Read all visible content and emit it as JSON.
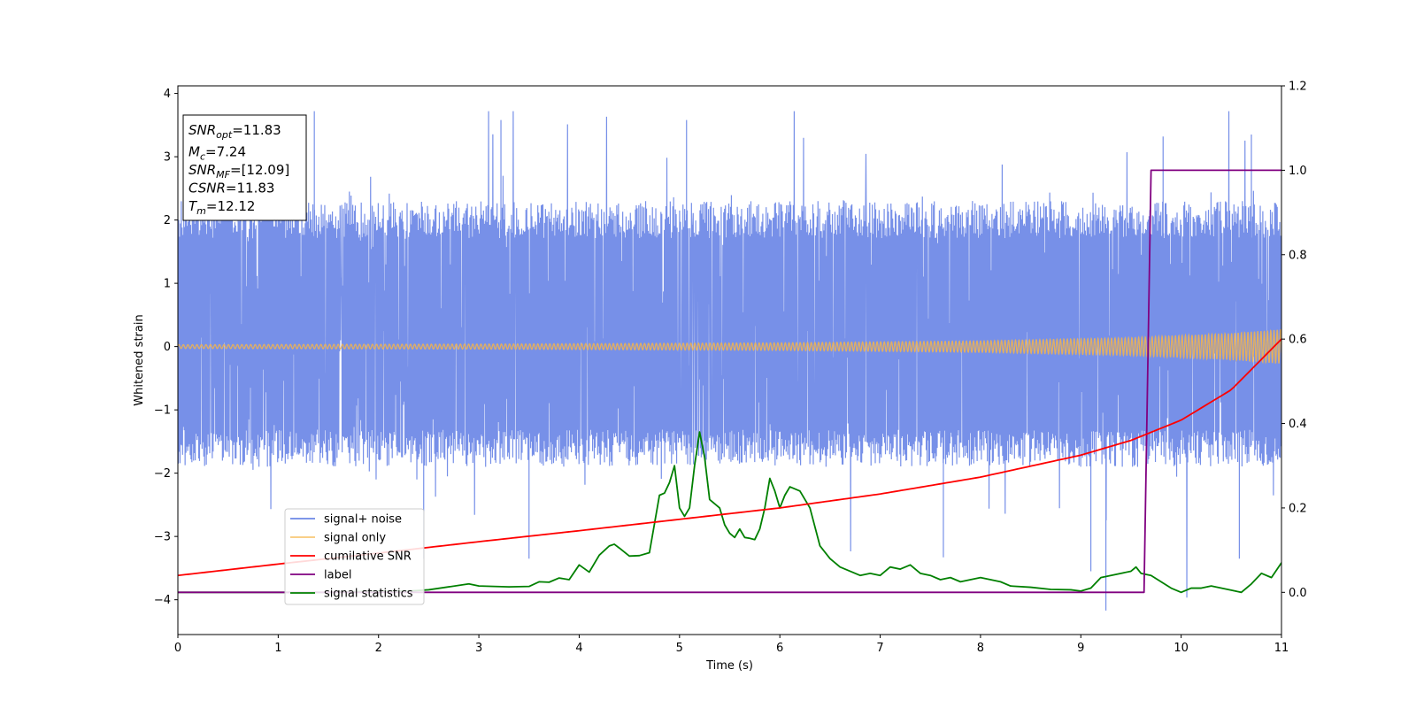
{
  "chart_data": {
    "type": "line",
    "xlabel": "Time (s)",
    "ylabel": "Whitened strain",
    "xlim": [
      0,
      11
    ],
    "ylim": [
      -4.55,
      4.12
    ],
    "y2lim": [
      -0.1,
      1.2
    ],
    "x_ticks": [
      0,
      1,
      2,
      3,
      4,
      5,
      6,
      7,
      8,
      9,
      10,
      11
    ],
    "y_ticks": [
      -4,
      -3,
      -2,
      -1,
      0,
      1,
      2,
      3,
      4
    ],
    "y2_ticks": [
      0.0,
      0.2,
      0.4,
      0.6,
      0.8,
      1.0,
      1.2
    ],
    "y_tick_labels": [
      "−4",
      "−3",
      "−2",
      "−1",
      "0",
      "1",
      "2",
      "3",
      "4"
    ],
    "y2_tick_labels": [
      "0.0",
      "0.2",
      "0.4",
      "0.6",
      "0.8",
      "1.0",
      "1.2"
    ],
    "grid": false,
    "legend_position": "lower-left",
    "series": [
      {
        "name": "signal+ noise",
        "color": "#6b87e6",
        "axis": "left",
        "kind": "noise band",
        "typical_range": [
          -1.9,
          2.3
        ],
        "extreme_range": [
          -4.17,
          3.72
        ],
        "peaks": [
          [
            1.36,
            3.72
          ],
          [
            3.22,
            3.58
          ],
          [
            5.07,
            3.58
          ],
          [
            9.82,
            3.32
          ],
          [
            10.7,
            3.35
          ],
          [
            9.25,
            -4.17
          ],
          [
            3.5,
            -3.35
          ],
          [
            10.58,
            -3.35
          ],
          [
            2.45,
            -3.35
          ],
          [
            7.63,
            -3.33
          ],
          [
            9.1,
            -3.55
          ]
        ]
      },
      {
        "name": "signal only",
        "color": "#f5b54a",
        "axis": "left",
        "kind": "chirp",
        "amplitude": [
          [
            0,
            0.03
          ],
          [
            3,
            0.04
          ],
          [
            6,
            0.06
          ],
          [
            8,
            0.09
          ],
          [
            9.5,
            0.14
          ],
          [
            10.5,
            0.21
          ],
          [
            11,
            0.27
          ]
        ]
      },
      {
        "name": "cumilative SNR",
        "color": "#ff0000",
        "axis": "right",
        "x": [
          0,
          1,
          2,
          3,
          4,
          5,
          6,
          7,
          8,
          9,
          9.5,
          10,
          10.5,
          11
        ],
        "y": [
          0.04,
          0.067,
          0.093,
          0.12,
          0.146,
          0.173,
          0.2,
          0.233,
          0.273,
          0.325,
          0.36,
          0.408,
          0.48,
          0.6
        ]
      },
      {
        "name": "label",
        "color": "#800080",
        "axis": "right",
        "x": [
          0,
          9.63,
          9.7,
          11
        ],
        "y": [
          0,
          0,
          1,
          1
        ]
      },
      {
        "name": "signal statistics",
        "color": "#008000",
        "axis": "right",
        "x": [
          0,
          0.5,
          1,
          1.5,
          2,
          2.3,
          2.5,
          2.9,
          3,
          3.3,
          3.5,
          3.6,
          3.7,
          3.8,
          3.9,
          4.0,
          4.1,
          4.2,
          4.3,
          4.35,
          4.4,
          4.5,
          4.6,
          4.7,
          4.8,
          4.85,
          4.9,
          4.95,
          5.0,
          5.05,
          5.1,
          5.15,
          5.2,
          5.25,
          5.3,
          5.4,
          5.45,
          5.5,
          5.55,
          5.6,
          5.65,
          5.7,
          5.75,
          5.8,
          5.85,
          5.9,
          5.95,
          6.0,
          6.05,
          6.1,
          6.2,
          6.3,
          6.4,
          6.5,
          6.6,
          6.7,
          6.8,
          6.9,
          7.0,
          7.1,
          7.2,
          7.3,
          7.4,
          7.5,
          7.6,
          7.7,
          7.8,
          7.9,
          8.0,
          8.1,
          8.2,
          8.3,
          8.5,
          8.7,
          8.9,
          9.0,
          9.1,
          9.2,
          9.3,
          9.4,
          9.5,
          9.55,
          9.6,
          9.7,
          9.8,
          9.9,
          10.0,
          10.1,
          10.2,
          10.3,
          10.4,
          10.5,
          10.6,
          10.7,
          10.8,
          10.9,
          11.0
        ],
        "y": [
          0.0,
          0.0,
          0.0,
          0.0,
          0.003,
          0.003,
          0.006,
          0.02,
          0.015,
          0.013,
          0.014,
          0.025,
          0.024,
          0.034,
          0.03,
          0.065,
          0.048,
          0.088,
          0.11,
          0.114,
          0.105,
          0.086,
          0.087,
          0.094,
          0.23,
          0.235,
          0.26,
          0.3,
          0.2,
          0.18,
          0.2,
          0.3,
          0.38,
          0.32,
          0.22,
          0.2,
          0.16,
          0.14,
          0.13,
          0.15,
          0.13,
          0.128,
          0.125,
          0.15,
          0.2,
          0.27,
          0.24,
          0.2,
          0.23,
          0.25,
          0.24,
          0.2,
          0.11,
          0.08,
          0.06,
          0.05,
          0.04,
          0.045,
          0.04,
          0.06,
          0.055,
          0.065,
          0.045,
          0.04,
          0.03,
          0.035,
          0.025,
          0.03,
          0.035,
          0.03,
          0.025,
          0.015,
          0.012,
          0.007,
          0.006,
          0.003,
          0.01,
          0.035,
          0.04,
          0.045,
          0.05,
          0.06,
          0.045,
          0.04,
          0.025,
          0.01,
          0.0,
          0.01,
          0.01,
          0.015,
          0.01,
          0.005,
          0.0,
          0.02,
          0.045,
          0.035,
          0.07
        ]
      }
    ],
    "annotation": {
      "lines": [
        {
          "label": "SNR",
          "sub": "opt",
          "value": "=11.83"
        },
        {
          "label": "M",
          "sub": "c",
          "value": "=7.24"
        },
        {
          "label": "SNR",
          "sub": "MF",
          "value": "=[12.09]"
        },
        {
          "label": "CSNR",
          "sub": "",
          "value": "=11.83"
        },
        {
          "label": "T",
          "sub": "m",
          "value": "=12.12"
        }
      ]
    }
  }
}
